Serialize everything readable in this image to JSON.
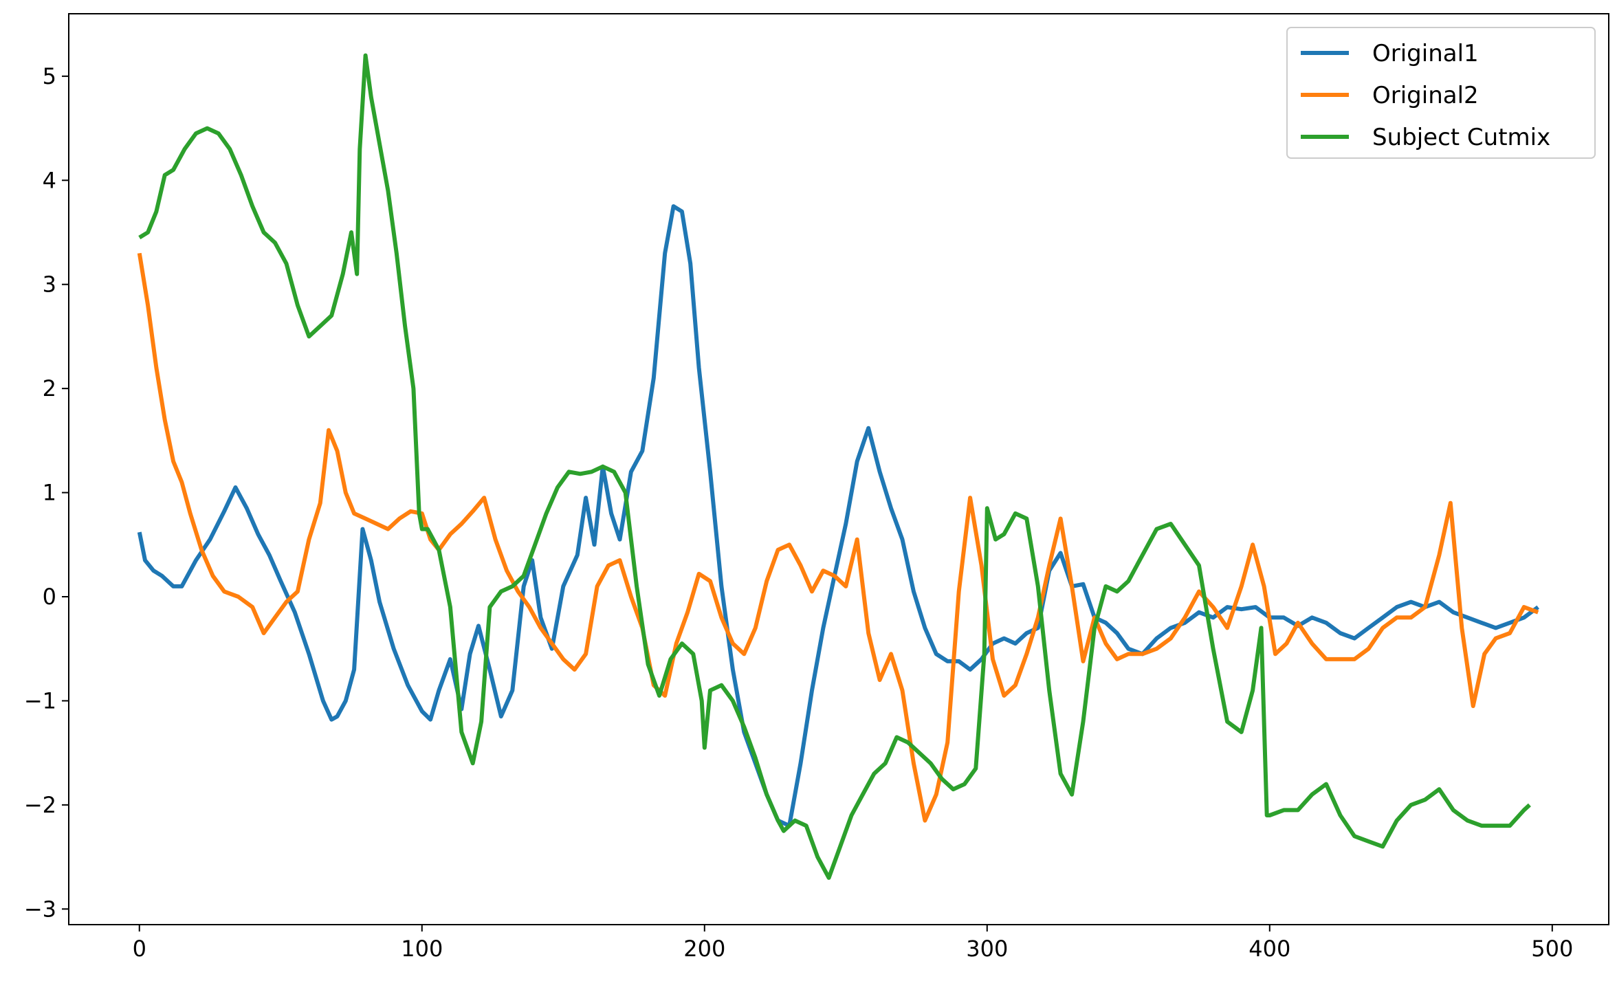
{
  "chart_data": {
    "type": "line",
    "title": "",
    "xlabel": "",
    "ylabel": "",
    "xlim": [
      -25,
      520
    ],
    "ylim": [
      -3.15,
      5.6
    ],
    "xticks": [
      0,
      100,
      200,
      300,
      400,
      500
    ],
    "yticks": [
      -3,
      -2,
      -1,
      0,
      1,
      2,
      3,
      4,
      5
    ],
    "x_tick_labels": [
      "0",
      "100",
      "200",
      "300",
      "400",
      "500"
    ],
    "y_tick_labels": [
      "−3",
      "−2",
      "−1",
      "0",
      "1",
      "2",
      "3",
      "4",
      "5"
    ],
    "grid": false,
    "legend_position": "top-right",
    "series": [
      {
        "name": "Original1",
        "color": "#1f77b4",
        "x": [
          0,
          2,
          5,
          8,
          12,
          15,
          20,
          25,
          30,
          34,
          38,
          42,
          46,
          50,
          55,
          60,
          65,
          68,
          70,
          73,
          76,
          79,
          82,
          85,
          90,
          95,
          100,
          103,
          106,
          110,
          114,
          117,
          120,
          124,
          128,
          132,
          136,
          139,
          142,
          146,
          150,
          155,
          158,
          161,
          164,
          167,
          170,
          174,
          178,
          182,
          186,
          189,
          192,
          195,
          198,
          202,
          206,
          210,
          214,
          218,
          222,
          226,
          230,
          234,
          238,
          242,
          246,
          250,
          254,
          258,
          262,
          266,
          270,
          274,
          278,
          282,
          286,
          290,
          294,
          298,
          302,
          306,
          310,
          314,
          318,
          322,
          326,
          330,
          334,
          338,
          342,
          346,
          350,
          355,
          360,
          365,
          370,
          375,
          380,
          385,
          390,
          395,
          400,
          405,
          410,
          415,
          420,
          425,
          430,
          435,
          440,
          445,
          450,
          455,
          460,
          465,
          470,
          475,
          480,
          485,
          490,
          495
        ],
        "values": [
          0.62,
          0.35,
          0.25,
          0.2,
          0.1,
          0.1,
          0.35,
          0.55,
          0.82,
          1.05,
          0.85,
          0.6,
          0.4,
          0.15,
          -0.15,
          -0.55,
          -1.0,
          -1.18,
          -1.15,
          -1.0,
          -0.7,
          0.65,
          0.35,
          -0.05,
          -0.5,
          -0.85,
          -1.1,
          -1.18,
          -0.9,
          -0.6,
          -1.08,
          -0.55,
          -0.28,
          -0.7,
          -1.15,
          -0.9,
          0.1,
          0.35,
          -0.2,
          -0.5,
          0.1,
          0.4,
          0.95,
          0.5,
          1.25,
          0.8,
          0.55,
          1.2,
          1.4,
          2.1,
          3.3,
          3.75,
          3.7,
          3.2,
          2.2,
          1.2,
          0.1,
          -0.7,
          -1.3,
          -1.6,
          -1.9,
          -2.15,
          -2.2,
          -1.6,
          -0.9,
          -0.3,
          0.2,
          0.7,
          1.3,
          1.62,
          1.2,
          0.85,
          0.55,
          0.05,
          -0.3,
          -0.55,
          -0.62,
          -0.62,
          -0.7,
          -0.6,
          -0.45,
          -0.4,
          -0.45,
          -0.35,
          -0.3,
          0.25,
          0.42,
          0.1,
          0.12,
          -0.2,
          -0.25,
          -0.35,
          -0.5,
          -0.55,
          -0.4,
          -0.3,
          -0.25,
          -0.15,
          -0.2,
          -0.1,
          -0.12,
          -0.1,
          -0.2,
          -0.2,
          -0.28,
          -0.2,
          -0.25,
          -0.35,
          -0.4,
          -0.3,
          -0.2,
          -0.1,
          -0.05,
          -0.1,
          -0.05,
          -0.15,
          -0.2,
          -0.25,
          -0.3,
          -0.25,
          -0.2,
          -0.1
        ]
      },
      {
        "name": "Original2",
        "color": "#ff7f0e",
        "x": [
          0,
          3,
          6,
          9,
          12,
          15,
          18,
          22,
          26,
          30,
          35,
          40,
          44,
          48,
          52,
          56,
          60,
          64,
          67,
          70,
          73,
          76,
          80,
          84,
          88,
          92,
          96,
          100,
          103,
          106,
          110,
          114,
          118,
          122,
          126,
          130,
          134,
          138,
          142,
          146,
          150,
          154,
          158,
          162,
          166,
          170,
          174,
          178,
          182,
          186,
          190,
          194,
          198,
          202,
          206,
          210,
          214,
          218,
          222,
          226,
          230,
          234,
          238,
          242,
          246,
          250,
          254,
          258,
          262,
          266,
          270,
          274,
          278,
          282,
          286,
          290,
          294,
          298,
          302,
          306,
          310,
          314,
          318,
          322,
          326,
          330,
          334,
          338,
          342,
          346,
          350,
          355,
          360,
          365,
          370,
          375,
          380,
          385,
          390,
          394,
          398,
          402,
          406,
          410,
          415,
          420,
          425,
          430,
          435,
          440,
          445,
          450,
          455,
          460,
          464,
          468,
          472,
          476,
          480,
          485,
          490,
          495
        ],
        "values": [
          3.3,
          2.8,
          2.2,
          1.7,
          1.3,
          1.1,
          0.8,
          0.45,
          0.2,
          0.05,
          0.0,
          -0.1,
          -0.35,
          -0.2,
          -0.05,
          0.05,
          0.55,
          0.9,
          1.6,
          1.4,
          1.0,
          0.8,
          0.75,
          0.7,
          0.65,
          0.75,
          0.82,
          0.8,
          0.55,
          0.45,
          0.6,
          0.7,
          0.82,
          0.95,
          0.55,
          0.25,
          0.05,
          -0.1,
          -0.3,
          -0.45,
          -0.6,
          -0.7,
          -0.55,
          0.1,
          0.3,
          0.35,
          0.0,
          -0.3,
          -0.85,
          -0.95,
          -0.45,
          -0.15,
          0.22,
          0.15,
          -0.2,
          -0.45,
          -0.55,
          -0.3,
          0.15,
          0.45,
          0.5,
          0.3,
          0.05,
          0.25,
          0.2,
          0.1,
          0.55,
          -0.35,
          -0.8,
          -0.55,
          -0.9,
          -1.6,
          -2.15,
          -1.9,
          -1.4,
          0.05,
          0.95,
          0.3,
          -0.6,
          -0.95,
          -0.85,
          -0.55,
          -0.2,
          0.3,
          0.75,
          0.1,
          -0.62,
          -0.2,
          -0.45,
          -0.6,
          -0.55,
          -0.55,
          -0.5,
          -0.4,
          -0.2,
          0.05,
          -0.1,
          -0.3,
          0.1,
          0.5,
          0.1,
          -0.55,
          -0.45,
          -0.25,
          -0.45,
          -0.6,
          -0.6,
          -0.6,
          -0.5,
          -0.3,
          -0.2,
          -0.2,
          -0.1,
          0.4,
          0.9,
          -0.3,
          -1.05,
          -0.55,
          -0.4,
          -0.35,
          -0.1,
          -0.15
        ]
      },
      {
        "name": "Subject Cutmix",
        "color": "#2ca02c",
        "x": [
          0,
          3,
          6,
          9,
          12,
          16,
          20,
          24,
          28,
          32,
          36,
          40,
          44,
          48,
          52,
          56,
          60,
          64,
          68,
          72,
          75,
          77,
          78,
          80,
          82,
          85,
          88,
          91,
          94,
          97,
          99,
          100,
          102,
          106,
          110,
          114,
          118,
          121,
          124,
          128,
          132,
          136,
          140,
          144,
          148,
          152,
          156,
          160,
          164,
          168,
          172,
          176,
          180,
          184,
          188,
          192,
          196,
          199,
          200,
          202,
          206,
          210,
          214,
          218,
          222,
          226,
          228,
          232,
          236,
          240,
          244,
          248,
          252,
          256,
          260,
          264,
          268,
          272,
          276,
          280,
          284,
          288,
          292,
          296,
          299,
          300,
          303,
          306,
          310,
          314,
          318,
          322,
          326,
          330,
          334,
          338,
          342,
          346,
          350,
          355,
          360,
          365,
          370,
          375,
          380,
          385,
          390,
          394,
          397,
          399,
          400,
          405,
          410,
          415,
          420,
          425,
          430,
          435,
          440,
          445,
          450,
          455,
          460,
          465,
          470,
          475,
          480,
          485,
          490,
          492
        ],
        "values": [
          3.45,
          3.5,
          3.7,
          4.05,
          4.1,
          4.3,
          4.45,
          4.5,
          4.45,
          4.3,
          4.05,
          3.75,
          3.5,
          3.4,
          3.2,
          2.8,
          2.5,
          2.6,
          2.7,
          3.1,
          3.5,
          3.1,
          4.3,
          5.2,
          4.8,
          4.35,
          3.9,
          3.3,
          2.6,
          2.0,
          0.8,
          0.65,
          0.65,
          0.45,
          -0.1,
          -1.3,
          -1.6,
          -1.2,
          -0.1,
          0.05,
          0.1,
          0.2,
          0.5,
          0.8,
          1.05,
          1.2,
          1.18,
          1.2,
          1.25,
          1.2,
          1.0,
          0.1,
          -0.65,
          -0.95,
          -0.6,
          -0.45,
          -0.55,
          -1.0,
          -1.45,
          -0.9,
          -0.85,
          -1.0,
          -1.25,
          -1.55,
          -1.9,
          -2.15,
          -2.25,
          -2.15,
          -2.2,
          -2.5,
          -2.7,
          -2.4,
          -2.1,
          -1.9,
          -1.7,
          -1.6,
          -1.35,
          -1.4,
          -1.5,
          -1.6,
          -1.75,
          -1.85,
          -1.8,
          -1.65,
          -0.55,
          0.85,
          0.55,
          0.6,
          0.8,
          0.75,
          0.1,
          -0.9,
          -1.7,
          -1.9,
          -1.2,
          -0.3,
          0.1,
          0.05,
          0.15,
          0.4,
          0.65,
          0.7,
          0.5,
          0.3,
          -0.5,
          -1.2,
          -1.3,
          -0.9,
          -0.3,
          -2.1,
          -2.1,
          -2.05,
          -2.05,
          -1.9,
          -1.8,
          -2.1,
          -2.3,
          -2.35,
          -2.4,
          -2.15,
          -2.0,
          -1.95,
          -1.85,
          -2.05,
          -2.15,
          -2.2,
          -2.2,
          -2.2,
          -2.05,
          -2.0
        ]
      }
    ]
  }
}
